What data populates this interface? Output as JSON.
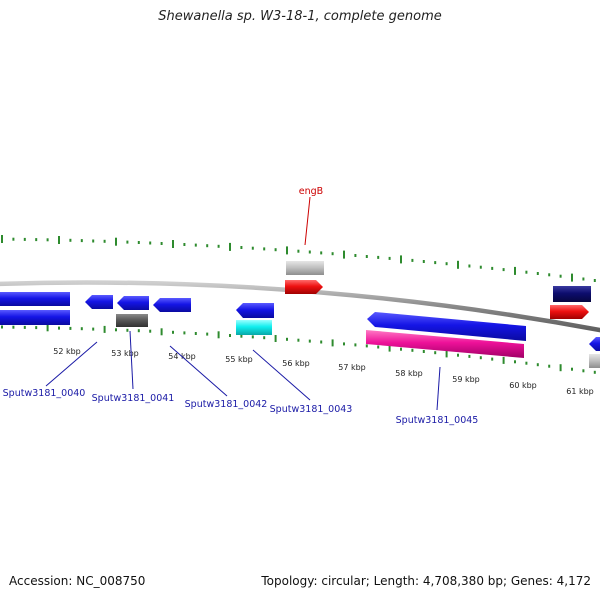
{
  "title": "Shewanella sp. W3-18-1, complete genome",
  "footer": {
    "accession": "Accession: NC_008750",
    "summary": "Topology: circular; Length: 4,708,380 bp; Genes: 4,172"
  },
  "ruler_labels": [
    "52 kbp",
    "53 kbp",
    "54 kbp",
    "55 kbp",
    "56 kbp",
    "57 kbp",
    "58 kbp",
    "59 kbp",
    "60 kbp",
    "61 kbp"
  ],
  "gene_labels": [
    "engB",
    "Sputw3181_0040",
    "Sputw3181_0041",
    "Sputw3181_0042",
    "Sputw3181_0043",
    "Sputw3181_0045"
  ],
  "colors": {
    "cds": "#1515e6",
    "cds_dark": "#0d0d6e",
    "gene_red": "#ee1111",
    "pseudo_grey": "#c2c2c2",
    "dark_grey": "#5a5a5a",
    "cyan": "#11eeee",
    "magenta": "#ee1199",
    "tick_green": "#2e8b2e",
    "backbone": "#888888"
  }
}
